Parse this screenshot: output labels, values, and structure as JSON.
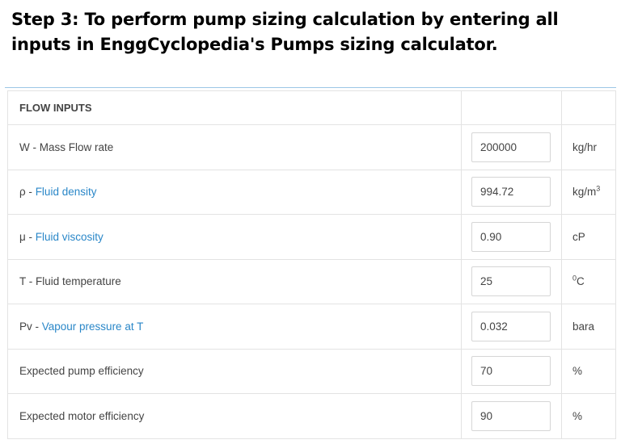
{
  "heading": "Step 3: To perform pump sizing calculation by entering all inputs in EnggCyclopedia's Pumps sizing calculator.",
  "section_title": "FLOW INPUTS",
  "rows": [
    {
      "symbol": "W - ",
      "label": "Mass Flow rate",
      "is_link": false,
      "value": "200000",
      "unit": "kg/hr",
      "unit_sup": "",
      "unit_pre_sup": ""
    },
    {
      "symbol": "ρ - ",
      "label": "Fluid density",
      "is_link": true,
      "value": "994.72",
      "unit": "kg/m",
      "unit_sup": "3",
      "unit_pre_sup": ""
    },
    {
      "symbol": "μ - ",
      "label": "Fluid viscosity",
      "is_link": true,
      "value": "0.90",
      "unit": "cP",
      "unit_sup": "",
      "unit_pre_sup": ""
    },
    {
      "symbol": "T - ",
      "label": "Fluid temperature",
      "is_link": false,
      "value": "25",
      "unit": "C",
      "unit_sup": "",
      "unit_pre_sup": "0"
    },
    {
      "symbol": "Pv - ",
      "label": "Vapour pressure at T",
      "is_link": true,
      "value": "0.032",
      "unit": "bara",
      "unit_sup": "",
      "unit_pre_sup": ""
    },
    {
      "symbol": "",
      "label": "Expected pump efficiency",
      "is_link": false,
      "value": "70",
      "unit": "%",
      "unit_sup": "",
      "unit_pre_sup": ""
    },
    {
      "symbol": "",
      "label": "Expected motor efficiency",
      "is_link": false,
      "value": "90",
      "unit": "%",
      "unit_sup": "",
      "unit_pre_sup": ""
    }
  ]
}
